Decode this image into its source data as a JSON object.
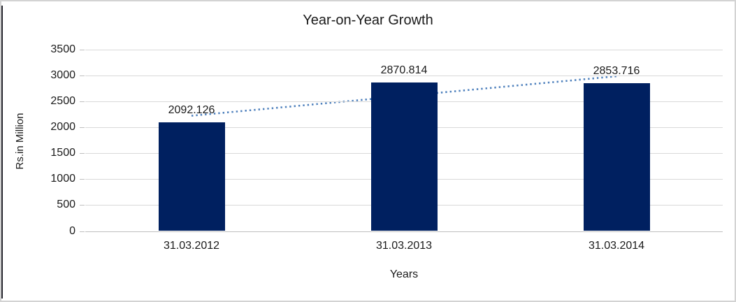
{
  "frame": {
    "background_color": "#ffffff",
    "border_color": "#d3d3d3",
    "left_edge_color": "#26262e"
  },
  "chart_data": {
    "type": "bar",
    "title": "Year-on-Year Growth",
    "xlabel": "Years",
    "ylabel": "Rs.in Million",
    "categories": [
      "31.03.2012",
      "31.03.2013",
      "31.03.2014"
    ],
    "values": [
      2092.126,
      2870.814,
      2853.716
    ],
    "value_labels": [
      "2092.126",
      "2870.814",
      "2853.716"
    ],
    "ylim": [
      0,
      3500
    ],
    "yticks": [
      0,
      500,
      1000,
      1500,
      2000,
      2500,
      3000,
      3500
    ],
    "grid": true,
    "legend": "none",
    "bar_color": "#002060",
    "gridline_color": "#d9d9d9",
    "axis_line_color": "#bfbfbf",
    "text_color": "#1a1a1a",
    "trendline": {
      "type": "linear",
      "style": "dotted",
      "color": "#4f81bd"
    }
  }
}
